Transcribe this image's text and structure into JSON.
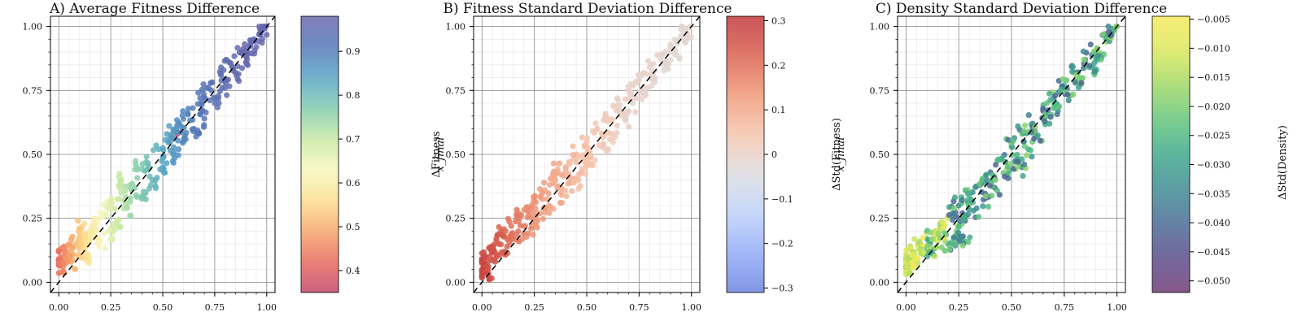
{
  "chart_data": [
    {
      "type": "scatter",
      "title": "A) Average Fitness Difference",
      "xlim": [
        -0.04,
        1.04
      ],
      "ylim": [
        -0.04,
        1.04
      ],
      "x_ticks": [
        "0.00",
        "0.25",
        "0.50",
        "0.75",
        "1.00"
      ],
      "y_ticks": [
        "0.00",
        "0.25",
        "0.50",
        "0.75",
        "1.00"
      ],
      "grid": true,
      "reference_line": "y = x (dashed)",
      "colormap": "Spectral",
      "colorbar": {
        "label": "ΔFitness",
        "range": [
          0.35,
          0.98
        ],
        "ticks": [
          "0.4",
          "0.5",
          "0.6",
          "0.7",
          "0.8",
          "0.9"
        ]
      },
      "color_function": "0.97 - 0.54*(1-x)^2",
      "spread": 0.035,
      "points": [
        {
          "x": 0.0,
          "y": 0.07
        },
        {
          "x": 0.0,
          "y": 0.09
        },
        {
          "x": 0.01,
          "y": 0.1
        },
        {
          "x": 0.02,
          "y": 0.06
        },
        {
          "x": 0.03,
          "y": 0.11
        },
        {
          "x": 0.05,
          "y": 0.12
        },
        {
          "x": 0.06,
          "y": 0.08
        },
        {
          "x": 0.08,
          "y": 0.15
        },
        {
          "x": 0.1,
          "y": 0.13
        },
        {
          "x": 0.1,
          "y": 0.21
        },
        {
          "x": 0.12,
          "y": 0.17
        },
        {
          "x": 0.14,
          "y": 0.11
        },
        {
          "x": 0.15,
          "y": 0.2
        },
        {
          "x": 0.18,
          "y": 0.23
        },
        {
          "x": 0.2,
          "y": 0.16
        },
        {
          "x": 0.22,
          "y": 0.27
        },
        {
          "x": 0.24,
          "y": 0.2
        },
        {
          "x": 0.25,
          "y": 0.31
        },
        {
          "x": 0.28,
          "y": 0.24
        },
        {
          "x": 0.3,
          "y": 0.35
        },
        {
          "x": 0.3,
          "y": 0.4
        },
        {
          "x": 0.33,
          "y": 0.29
        },
        {
          "x": 0.35,
          "y": 0.36
        },
        {
          "x": 0.38,
          "y": 0.44
        },
        {
          "x": 0.4,
          "y": 0.33
        },
        {
          "x": 0.42,
          "y": 0.47
        },
        {
          "x": 0.45,
          "y": 0.4
        },
        {
          "x": 0.48,
          "y": 0.52
        },
        {
          "x": 0.5,
          "y": 0.45
        },
        {
          "x": 0.52,
          "y": 0.58
        },
        {
          "x": 0.55,
          "y": 0.5
        },
        {
          "x": 0.58,
          "y": 0.62
        },
        {
          "x": 0.6,
          "y": 0.55
        },
        {
          "x": 0.62,
          "y": 0.66
        },
        {
          "x": 0.65,
          "y": 0.6
        },
        {
          "x": 0.68,
          "y": 0.72
        },
        {
          "x": 0.7,
          "y": 0.64
        },
        {
          "x": 0.72,
          "y": 0.76
        },
        {
          "x": 0.75,
          "y": 0.7
        },
        {
          "x": 0.78,
          "y": 0.81
        },
        {
          "x": 0.8,
          "y": 0.76
        },
        {
          "x": 0.82,
          "y": 0.86
        },
        {
          "x": 0.85,
          "y": 0.82
        },
        {
          "x": 0.88,
          "y": 0.9
        },
        {
          "x": 0.9,
          "y": 0.86
        },
        {
          "x": 0.92,
          "y": 0.93
        },
        {
          "x": 0.95,
          "y": 0.92
        },
        {
          "x": 0.97,
          "y": 0.97
        },
        {
          "x": 0.98,
          "y": 0.99
        },
        {
          "x": 0.57,
          "y": 0.58
        }
      ]
    },
    {
      "type": "scatter",
      "title": "B) Fitness Standard Deviation Difference",
      "xlim": [
        -0.04,
        1.04
      ],
      "ylim": [
        -0.04,
        1.04
      ],
      "x_ticks": [
        "0.00",
        "0.25",
        "0.50",
        "0.75",
        "1.00"
      ],
      "y_ticks": [
        "0.00",
        "0.25",
        "0.50",
        "0.75",
        "1.00"
      ],
      "grid": true,
      "reference_line": "y = x (dashed)",
      "colormap": "coolwarm",
      "colorbar": {
        "label": "ΔStd(Fitness)",
        "range": [
          -0.31,
          0.31
        ],
        "ticks": [
          "−0.3",
          "−0.2",
          "−0.1",
          "0",
          "0.1",
          "0.2",
          "0.3"
        ]
      },
      "color_function": "0.3*(1-x)^2.2 - 0.02",
      "spread": 0.035,
      "points": [
        {
          "x": 0.0,
          "y": 0.04
        },
        {
          "x": 0.0,
          "y": 0.08
        },
        {
          "x": 0.01,
          "y": 0.06
        },
        {
          "x": 0.02,
          "y": 0.1
        },
        {
          "x": 0.03,
          "y": 0.03
        },
        {
          "x": 0.05,
          "y": 0.12
        },
        {
          "x": 0.06,
          "y": 0.09
        },
        {
          "x": 0.08,
          "y": 0.15
        },
        {
          "x": 0.1,
          "y": 0.2
        },
        {
          "x": 0.12,
          "y": 0.14
        },
        {
          "x": 0.14,
          "y": 0.22
        },
        {
          "x": 0.15,
          "y": 0.17
        },
        {
          "x": 0.18,
          "y": 0.25
        },
        {
          "x": 0.2,
          "y": 0.19
        },
        {
          "x": 0.22,
          "y": 0.28
        },
        {
          "x": 0.24,
          "y": 0.22
        },
        {
          "x": 0.25,
          "y": 0.32
        },
        {
          "x": 0.28,
          "y": 0.27
        },
        {
          "x": 0.3,
          "y": 0.36
        },
        {
          "x": 0.32,
          "y": 0.3
        },
        {
          "x": 0.35,
          "y": 0.4
        },
        {
          "x": 0.38,
          "y": 0.34
        },
        {
          "x": 0.4,
          "y": 0.45
        },
        {
          "x": 0.42,
          "y": 0.39
        },
        {
          "x": 0.45,
          "y": 0.5
        },
        {
          "x": 0.48,
          "y": 0.44
        },
        {
          "x": 0.5,
          "y": 0.55
        },
        {
          "x": 0.52,
          "y": 0.49
        },
        {
          "x": 0.55,
          "y": 0.6
        },
        {
          "x": 0.58,
          "y": 0.54
        },
        {
          "x": 0.6,
          "y": 0.64
        },
        {
          "x": 0.62,
          "y": 0.58
        },
        {
          "x": 0.65,
          "y": 0.69
        },
        {
          "x": 0.68,
          "y": 0.64
        },
        {
          "x": 0.7,
          "y": 0.75
        },
        {
          "x": 0.72,
          "y": 0.7
        },
        {
          "x": 0.75,
          "y": 0.79
        },
        {
          "x": 0.78,
          "y": 0.74
        },
        {
          "x": 0.8,
          "y": 0.84
        },
        {
          "x": 0.82,
          "y": 0.8
        },
        {
          "x": 0.85,
          "y": 0.88
        },
        {
          "x": 0.88,
          "y": 0.85
        },
        {
          "x": 0.9,
          "y": 0.92
        },
        {
          "x": 0.92,
          "y": 0.89
        },
        {
          "x": 0.95,
          "y": 0.96
        },
        {
          "x": 0.97,
          "y": 0.99
        },
        {
          "x": 0.98,
          "y": 0.97
        },
        {
          "x": 0.5,
          "y": 0.48
        },
        {
          "x": 0.46,
          "y": 0.4
        },
        {
          "x": 0.36,
          "y": 0.43
        }
      ]
    },
    {
      "type": "scatter",
      "title": "C) Density Standard Deviation Difference",
      "xlim": [
        -0.04,
        1.04
      ],
      "ylim": [
        -0.04,
        1.04
      ],
      "x_ticks": [
        "0.00",
        "0.25",
        "0.50",
        "0.75",
        "1.00"
      ],
      "y_ticks": [
        "0.00",
        "0.25",
        "0.50",
        "0.75",
        "1.00"
      ],
      "grid": true,
      "reference_line": "y = x (dashed)",
      "colormap": "viridis",
      "colorbar": {
        "label": "ΔStd(Density)",
        "range": [
          -0.052,
          -0.0045
        ],
        "ticks": [
          "−0.050",
          "−0.045",
          "−0.040",
          "−0.035",
          "−0.030",
          "−0.025",
          "−0.020",
          "−0.015",
          "−0.010",
          "−0.005"
        ]
      },
      "color_function": "varies around -0.03; yellow near origin",
      "spread": 0.035,
      "points": [
        {
          "x": 0.0,
          "y": 0.05
        },
        {
          "x": 0.0,
          "y": 0.08
        },
        {
          "x": 0.01,
          "y": 0.1
        },
        {
          "x": 0.02,
          "y": 0.06
        },
        {
          "x": 0.03,
          "y": 0.12
        },
        {
          "x": 0.05,
          "y": 0.09
        },
        {
          "x": 0.06,
          "y": 0.14
        },
        {
          "x": 0.08,
          "y": 0.11
        },
        {
          "x": 0.1,
          "y": 0.17
        },
        {
          "x": 0.12,
          "y": 0.13
        },
        {
          "x": 0.14,
          "y": 0.2
        },
        {
          "x": 0.15,
          "y": 0.16
        },
        {
          "x": 0.18,
          "y": 0.22
        },
        {
          "x": 0.2,
          "y": 0.15
        },
        {
          "x": 0.22,
          "y": 0.27
        },
        {
          "x": 0.24,
          "y": 0.2
        },
        {
          "x": 0.25,
          "y": 0.3
        },
        {
          "x": 0.28,
          "y": 0.24
        },
        {
          "x": 0.3,
          "y": 0.34
        },
        {
          "x": 0.32,
          "y": 0.28
        },
        {
          "x": 0.35,
          "y": 0.38
        },
        {
          "x": 0.38,
          "y": 0.33
        },
        {
          "x": 0.4,
          "y": 0.43
        },
        {
          "x": 0.42,
          "y": 0.37
        },
        {
          "x": 0.45,
          "y": 0.48
        },
        {
          "x": 0.48,
          "y": 0.42
        },
        {
          "x": 0.5,
          "y": 0.53
        },
        {
          "x": 0.52,
          "y": 0.47
        },
        {
          "x": 0.55,
          "y": 0.58
        },
        {
          "x": 0.58,
          "y": 0.52
        },
        {
          "x": 0.6,
          "y": 0.62
        },
        {
          "x": 0.62,
          "y": 0.57
        },
        {
          "x": 0.65,
          "y": 0.67
        },
        {
          "x": 0.68,
          "y": 0.62
        },
        {
          "x": 0.7,
          "y": 0.72
        },
        {
          "x": 0.72,
          "y": 0.67
        },
        {
          "x": 0.75,
          "y": 0.77
        },
        {
          "x": 0.78,
          "y": 0.73
        },
        {
          "x": 0.8,
          "y": 0.82
        },
        {
          "x": 0.82,
          "y": 0.78
        },
        {
          "x": 0.85,
          "y": 0.87
        },
        {
          "x": 0.88,
          "y": 0.84
        },
        {
          "x": 0.9,
          "y": 0.9
        },
        {
          "x": 0.92,
          "y": 0.88
        },
        {
          "x": 0.95,
          "y": 0.94
        },
        {
          "x": 0.97,
          "y": 0.97
        },
        {
          "x": 0.98,
          "y": 0.99
        },
        {
          "x": 0.25,
          "y": 0.17
        },
        {
          "x": 0.28,
          "y": 0.16
        },
        {
          "x": 0.55,
          "y": 0.45
        }
      ]
    }
  ],
  "overlapped_labels": {
    "panel_a_right": [
      "ΔFitness",
      "x_final"
    ],
    "panel_b_right": [
      "ΔStd(Fitness)",
      "x_final"
    ]
  }
}
